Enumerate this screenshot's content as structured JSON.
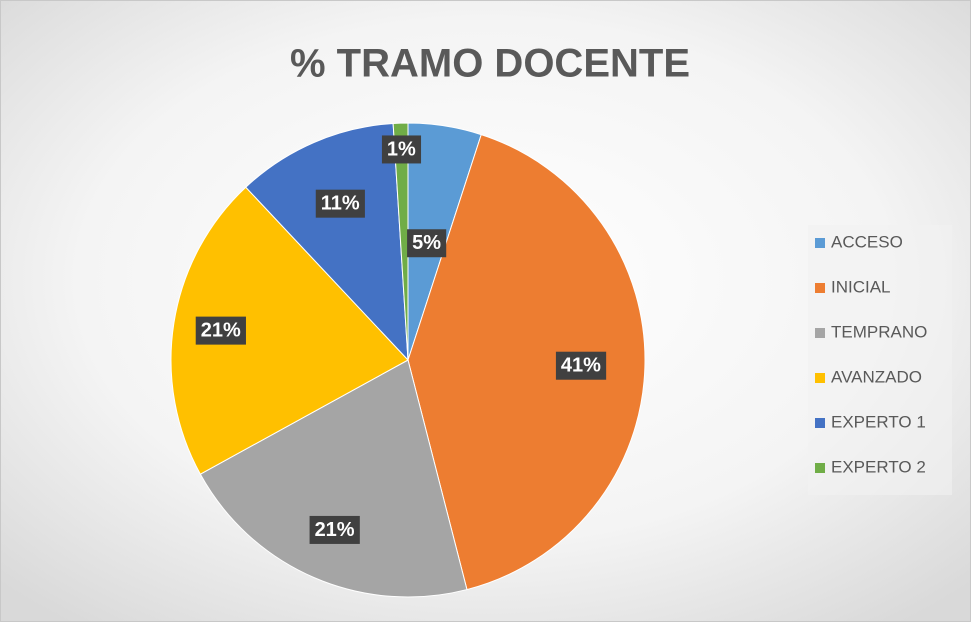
{
  "chart_data": {
    "type": "pie",
    "title": "% TRAMO DOCENTE",
    "categories": [
      "ACCESO",
      "INICIAL",
      "TEMPRANO",
      "AVANZADO",
      "EXPERTO 1",
      "EXPERTO 2"
    ],
    "values": [
      5,
      41,
      21,
      21,
      11,
      1
    ],
    "value_labels": [
      "5%",
      "41%",
      "21%",
      "21%",
      "11%",
      "1%"
    ],
    "colors": [
      "#5b9bd5",
      "#ed7d31",
      "#a5a5a5",
      "#ffc000",
      "#4472c4",
      "#70ad47"
    ],
    "legend": "right"
  }
}
